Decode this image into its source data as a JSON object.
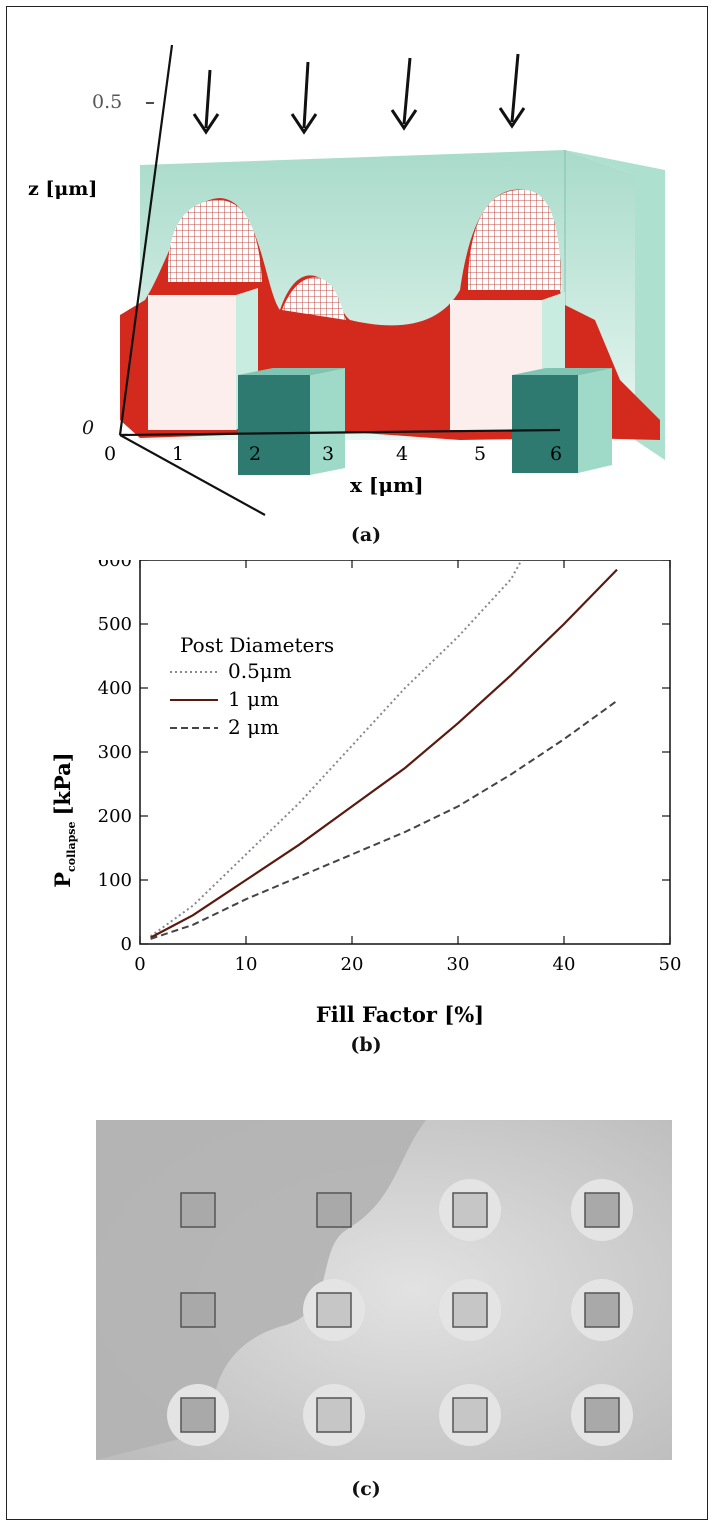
{
  "panel_a": {
    "caption": "(a)",
    "z_axis_label": "z [μm]",
    "x_axis_label": "x [μm]",
    "z_ticks": [
      "0.5",
      "0"
    ],
    "x_ticks": [
      "0",
      "1",
      "2",
      "3",
      "4",
      "5",
      "6"
    ],
    "arrow_count": 4,
    "colors": {
      "surface": "#d42a1e",
      "box": "#bfe8dc",
      "post": "#2f7a70"
    }
  },
  "panel_b": {
    "caption": "(b)"
  },
  "panel_c": {
    "caption": "(c)",
    "grid_rows": 3,
    "grid_cols": 4
  },
  "chart_data": {
    "type": "line",
    "title": "",
    "xlabel": "Fill Factor [%]",
    "ylabel_main": "P",
    "ylabel_sub": "collapse",
    "ylabel_unit": "[kPa]",
    "xlim": [
      0,
      50
    ],
    "ylim": [
      0,
      600
    ],
    "x_ticks": [
      "0",
      "10",
      "20",
      "30",
      "40",
      "50"
    ],
    "y_ticks": [
      "0",
      "100",
      "200",
      "300",
      "400",
      "500",
      "600"
    ],
    "legend_title": "Post Diameters",
    "legend_position": "top-left",
    "series": [
      {
        "name": "0.5μm",
        "style": "dotted",
        "x": [
          1,
          5,
          10,
          15,
          20,
          25,
          30,
          35,
          36
        ],
        "y": [
          12,
          60,
          140,
          220,
          310,
          400,
          480,
          570,
          600
        ]
      },
      {
        "name": "1 μm",
        "style": "solid",
        "x": [
          1,
          5,
          10,
          15,
          20,
          25,
          30,
          35,
          40,
          45
        ],
        "y": [
          10,
          45,
          100,
          155,
          215,
          275,
          345,
          420,
          500,
          585
        ]
      },
      {
        "name": "2 μm",
        "style": "dashed",
        "x": [
          1,
          5,
          10,
          15,
          20,
          25,
          30,
          35,
          40,
          45
        ],
        "y": [
          8,
          30,
          70,
          105,
          140,
          175,
          215,
          265,
          320,
          380
        ]
      }
    ]
  }
}
